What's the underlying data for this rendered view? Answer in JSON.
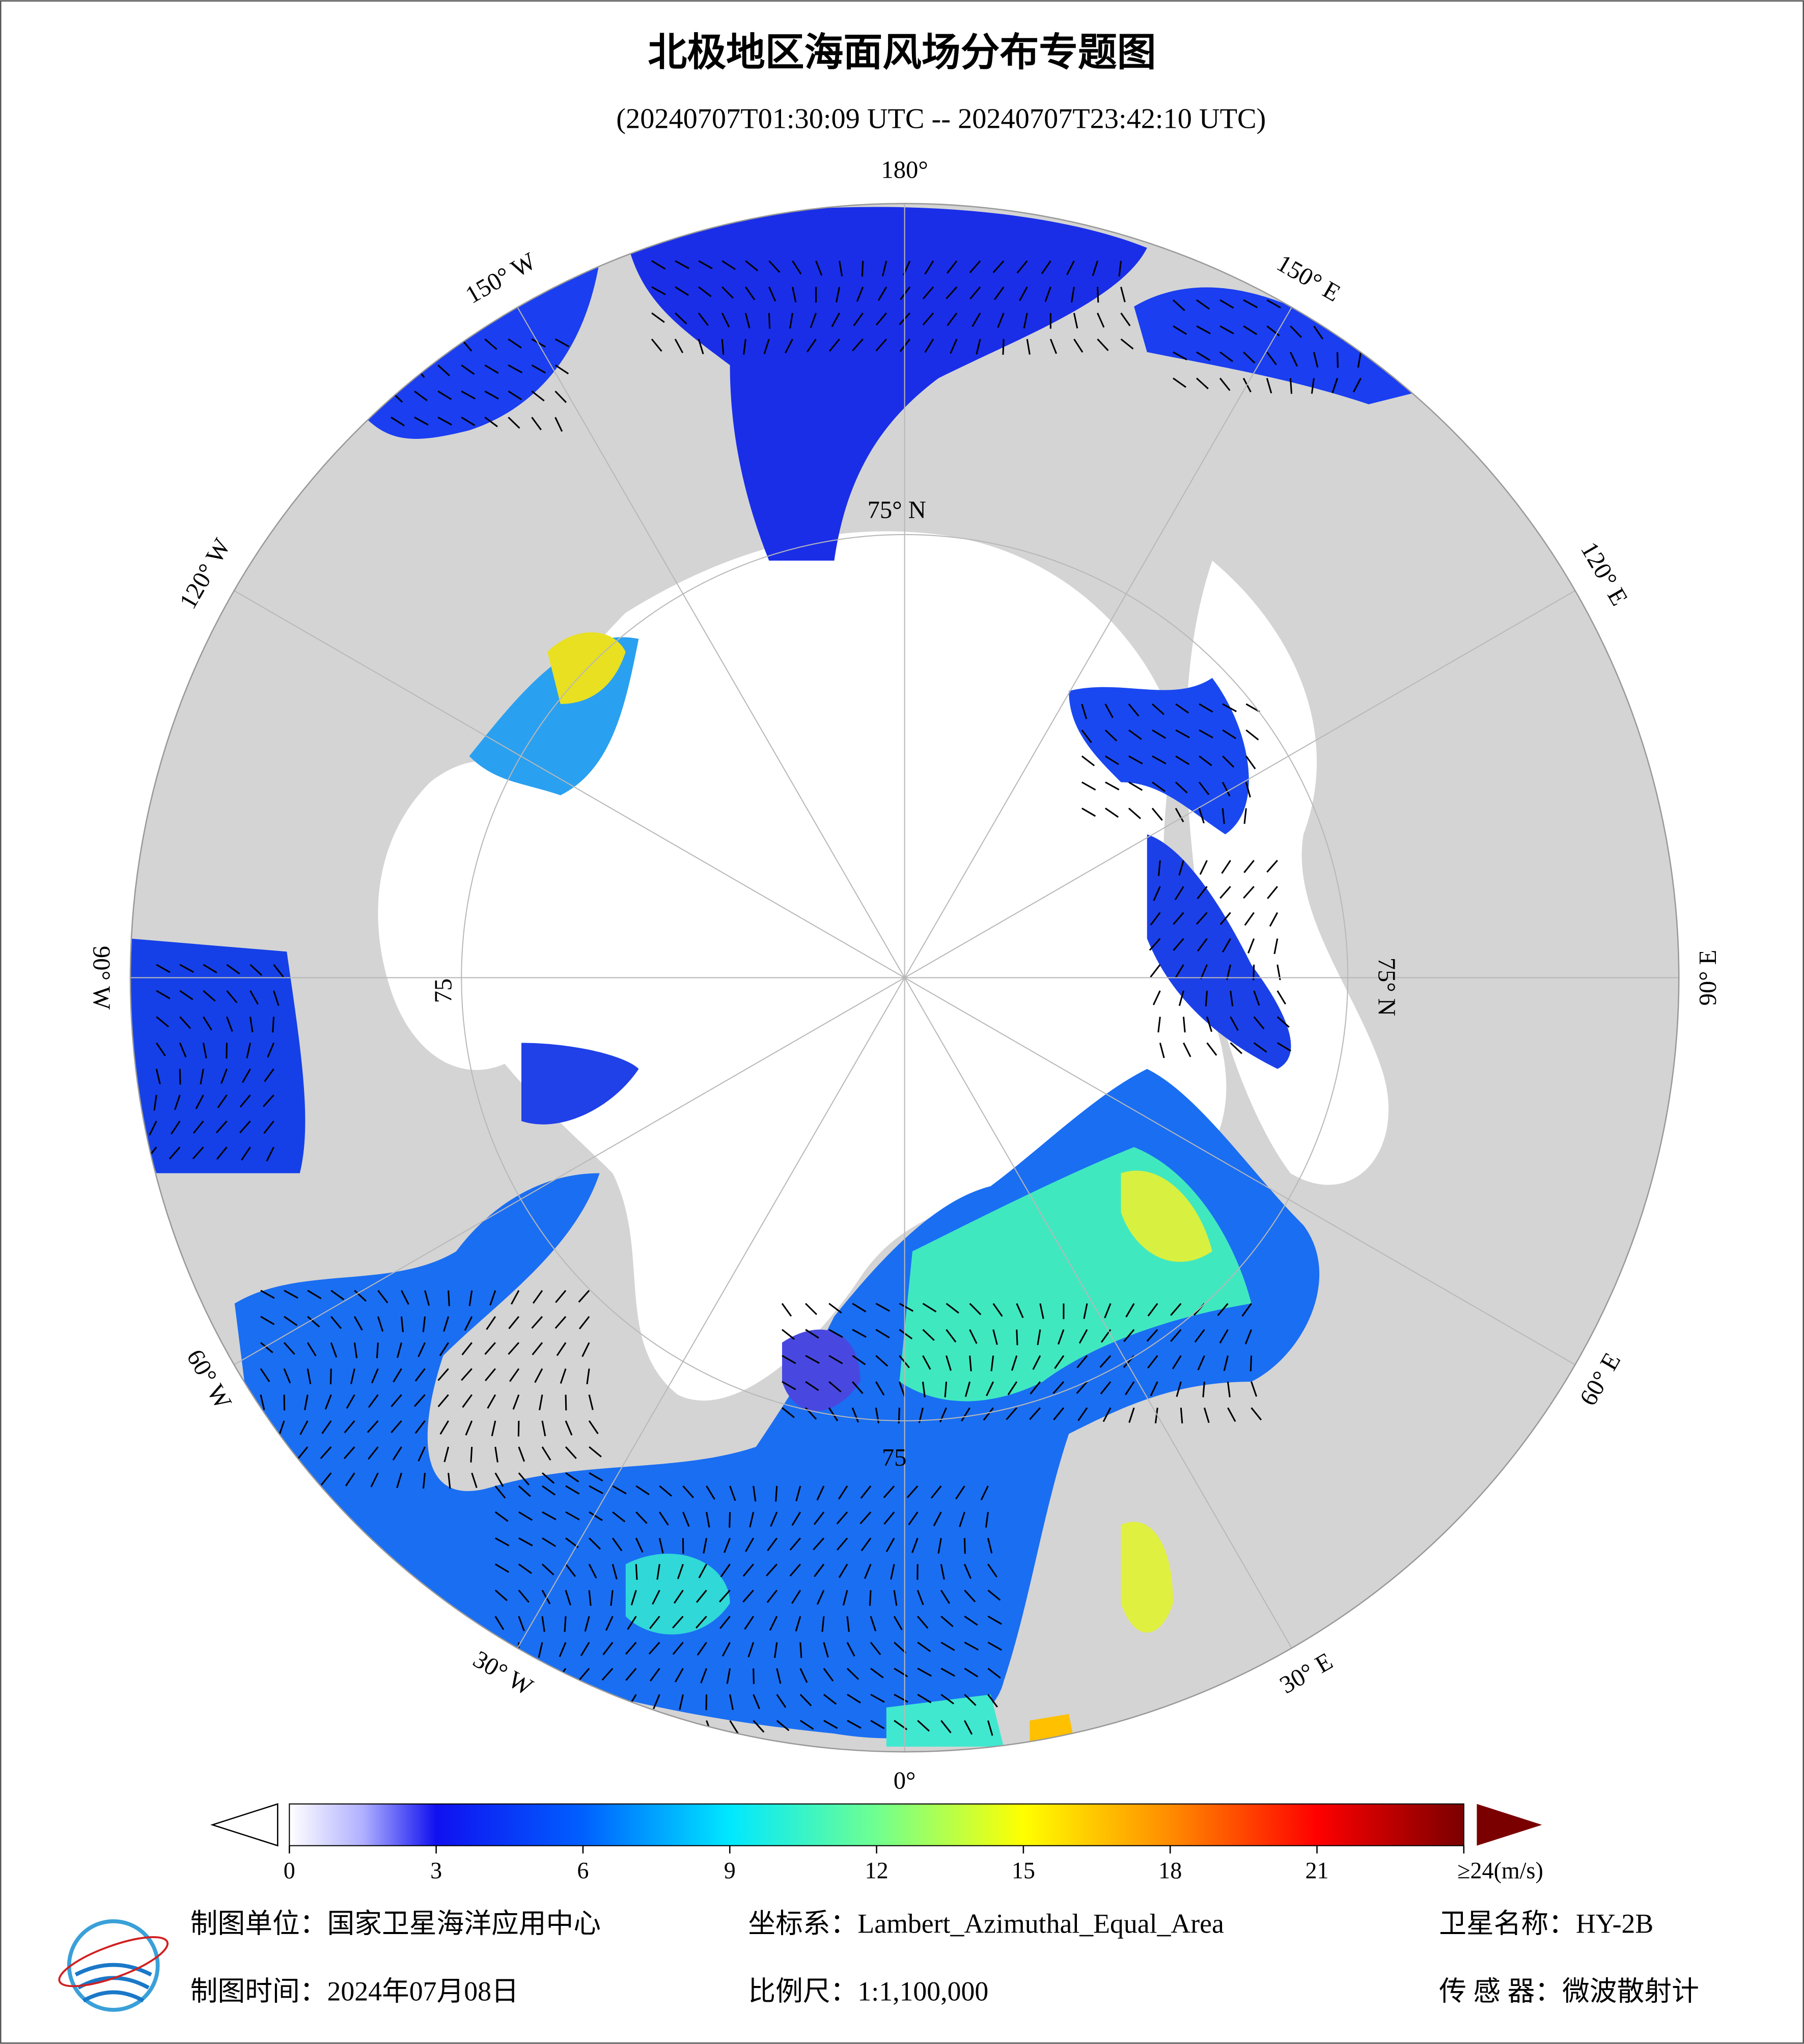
{
  "header": {
    "title": "北极地区海面风场分布专题图",
    "subtitle": "(20240707T01:30:09 UTC -- 20240707T23:42:10 UTC)"
  },
  "map": {
    "longitude_labels": [
      "0°",
      "30° E",
      "60° E",
      "90° E",
      "120° E",
      "150° E",
      "180°",
      "150° W",
      "120° W",
      "90° W",
      "60° W",
      "30° W"
    ],
    "latitude_labels": [
      "75° N",
      "75° N",
      "75",
      "75"
    ]
  },
  "colorbar": {
    "ticks": [
      0,
      3,
      6,
      9,
      12,
      15,
      18,
      21,
      {
        "value": 24,
        "label": "≥24(m/s)"
      }
    ],
    "lim": [
      0,
      24
    ],
    "stops": [
      {
        "value": 0,
        "color": "#ffffff"
      },
      {
        "value": 1.5,
        "color": "#b0b0ff"
      },
      {
        "value": 3,
        "color": "#1010f0"
      },
      {
        "value": 6,
        "color": "#0060ff"
      },
      {
        "value": 9,
        "color": "#00e8ff"
      },
      {
        "value": 12,
        "color": "#70ff90"
      },
      {
        "value": 15,
        "color": "#ffff00"
      },
      {
        "value": 18,
        "color": "#ff8c00"
      },
      {
        "value": 21,
        "color": "#ff0000"
      },
      {
        "value": 24,
        "color": "#7a0000"
      }
    ]
  },
  "footer": {
    "unit": "制图单位：国家卫星海洋应用中心",
    "coord": "坐标系：Lambert_Azimuthal_Equal_Area",
    "satellite": "卫星名称：HY-2B",
    "date": "制图时间：2024年07月08日",
    "scale": "比例尺：1:1,100,000",
    "sensor": "传 感 器：微波散射计"
  }
}
